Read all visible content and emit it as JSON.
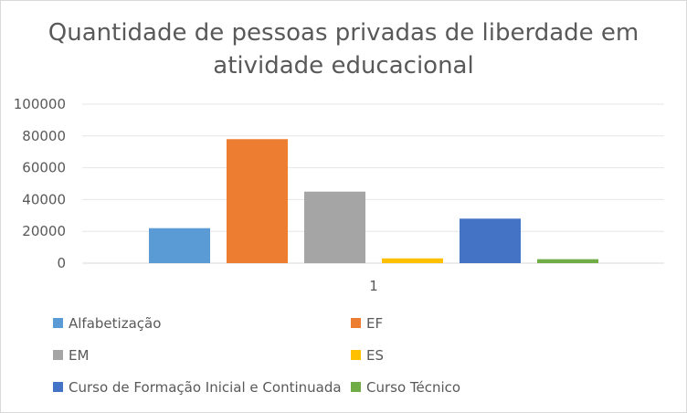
{
  "chart_data": {
    "type": "bar",
    "title": "Quantidade de pessoas privadas de liberdade em atividade educacional",
    "categories": [
      "1"
    ],
    "series": [
      {
        "name": "Alfabetização",
        "values": [
          22000
        ],
        "color": "#5b9bd5"
      },
      {
        "name": "EF",
        "values": [
          78000
        ],
        "color": "#ed7d31"
      },
      {
        "name": "EM",
        "values": [
          45000
        ],
        "color": "#a5a5a5"
      },
      {
        "name": "ES",
        "values": [
          3000
        ],
        "color": "#ffc000"
      },
      {
        "name": "Curso de Formação Inicial e Continuada",
        "values": [
          28000
        ],
        "color": "#4472c4"
      },
      {
        "name": "Curso Técnico",
        "values": [
          2500
        ],
        "color": "#70ad47"
      }
    ],
    "ylim": [
      0,
      100000
    ],
    "yticks": [
      "100000",
      "80000",
      "60000",
      "40000",
      "20000",
      "0"
    ],
    "grid": true,
    "legend_position": "bottom"
  }
}
